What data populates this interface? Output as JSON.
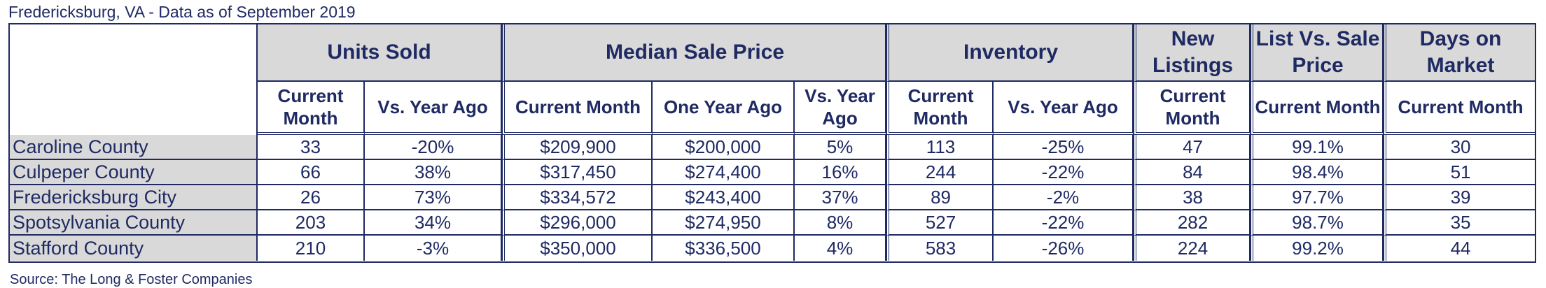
{
  "title": "Fredericksburg, VA - Data as of September 2019",
  "source": "Source: The Long & Foster Companies",
  "groups": [
    "Units Sold",
    "Median Sale Price",
    "Inventory",
    "New Listings",
    "List Vs. Sale Price",
    "Days on Market"
  ],
  "subheaders": [
    "Current Month",
    "Vs. Year Ago",
    "Current Month",
    "One Year Ago",
    "Vs. Year Ago",
    "Current Month",
    "Vs. Year Ago",
    "Current Month",
    "Current Month",
    "Current Month"
  ],
  "rows": [
    {
      "label": "Caroline County",
      "cells": [
        "33",
        "-20%",
        "$209,900",
        "$200,000",
        "5%",
        "113",
        "-25%",
        "47",
        "99.1%",
        "30"
      ]
    },
    {
      "label": "Culpeper County",
      "cells": [
        "66",
        "38%",
        "$317,450",
        "$274,400",
        "16%",
        "244",
        "-22%",
        "84",
        "98.4%",
        "51"
      ]
    },
    {
      "label": "Fredericksburg City",
      "cells": [
        "26",
        "73%",
        "$334,572",
        "$243,400",
        "37%",
        "89",
        "-2%",
        "38",
        "97.7%",
        "39"
      ]
    },
    {
      "label": "Spotsylvania County",
      "cells": [
        "203",
        "34%",
        "$296,000",
        "$274,950",
        "8%",
        "527",
        "-22%",
        "282",
        "98.7%",
        "35"
      ]
    },
    {
      "label": "Stafford County",
      "cells": [
        "210",
        "-3%",
        "$350,000",
        "$336,500",
        "4%",
        "583",
        "-26%",
        "224",
        "99.2%",
        "44"
      ]
    }
  ]
}
